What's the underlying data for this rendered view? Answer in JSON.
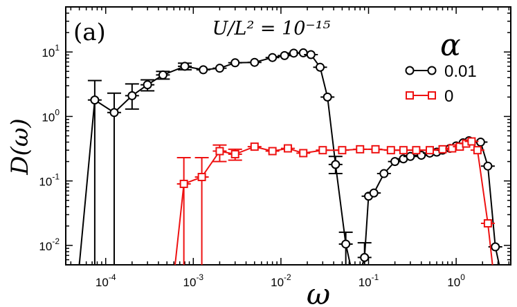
{
  "chart_data": {
    "type": "line",
    "panel_label": "(a)",
    "annotation": "U/L² = 10⁻¹⁵",
    "xlabel": "ω",
    "ylabel": "D(ω)",
    "xscale": "log",
    "yscale": "log",
    "xlim": [
      3.5e-05,
      4.2
    ],
    "ylim": [
      0.005,
      50
    ],
    "x_ticks": [
      {
        "value": 0.0001,
        "mantissa": "10",
        "exp": "-4"
      },
      {
        "value": 0.001,
        "mantissa": "10",
        "exp": "-3"
      },
      {
        "value": 0.01,
        "mantissa": "10",
        "exp": "-2"
      },
      {
        "value": 0.1,
        "mantissa": "10",
        "exp": "-1"
      },
      {
        "value": 1,
        "mantissa": "10",
        "exp": "0"
      }
    ],
    "y_ticks": [
      {
        "value": 0.01,
        "mantissa": "10",
        "exp": "-2"
      },
      {
        "value": 0.1,
        "mantissa": "10",
        "exp": "-1"
      },
      {
        "value": 1,
        "mantissa": "10",
        "exp": "0"
      },
      {
        "value": 10,
        "mantissa": "10",
        "exp": "1"
      }
    ],
    "legend": {
      "title": "α",
      "position": "top-right"
    },
    "series": [
      {
        "name": "0.01",
        "color": "#000000",
        "marker": "circle",
        "segments": [
          {
            "points": [
              {
                "x": 5e-05,
                "y": 0.005
              },
              {
                "x": 7.5e-05,
                "y": 1.8,
                "err": [
                  0.005,
                  3.6
                ]
              },
              {
                "x": 0.000125,
                "y": 1.15,
                "err": [
                  0.005,
                  2.3
                ]
              },
              {
                "x": 0.0002,
                "y": 2.1,
                "err": [
                  1.3,
                  3.2
                ]
              },
              {
                "x": 0.0003,
                "y": 3.1,
                "err": [
                  2.5,
                  3.7
                ]
              },
              {
                "x": 0.00045,
                "y": 4.4,
                "err": [
                  3.8,
                  5.0
                ]
              },
              {
                "x": 0.0008,
                "y": 6.0,
                "err": [
                  5.3,
                  6.7
                ]
              },
              {
                "x": 0.0013,
                "y": 5.3
              },
              {
                "x": 0.002,
                "y": 5.6
              },
              {
                "x": 0.003,
                "y": 6.8
              },
              {
                "x": 0.005,
                "y": 6.9
              },
              {
                "x": 0.008,
                "y": 8.2
              },
              {
                "x": 0.011,
                "y": 8.8
              },
              {
                "x": 0.014,
                "y": 9.6
              },
              {
                "x": 0.018,
                "y": 9.7
              },
              {
                "x": 0.022,
                "y": 9.1
              },
              {
                "x": 0.028,
                "y": 5.8
              },
              {
                "x": 0.034,
                "y": 2.0
              },
              {
                "x": 0.042,
                "y": 0.18,
                "err": [
                  0.13,
                  0.24
                ]
              },
              {
                "x": 0.055,
                "y": 0.0105,
                "err": [
                  0.005,
                  0.016
                ]
              },
              {
                "x": 0.062,
                "y": 0.005
              }
            ]
          },
          {
            "points": [
              {
                "x": 0.085,
                "y": 0.005
              },
              {
                "x": 0.09,
                "y": 0.0065,
                "err": [
                  0.005,
                  0.011
                ]
              },
              {
                "x": 0.1,
                "y": 0.058
              },
              {
                "x": 0.115,
                "y": 0.065
              },
              {
                "x": 0.15,
                "y": 0.13
              },
              {
                "x": 0.2,
                "y": 0.2
              },
              {
                "x": 0.25,
                "y": 0.22
              },
              {
                "x": 0.3,
                "y": 0.24
              },
              {
                "x": 0.4,
                "y": 0.25
              },
              {
                "x": 0.5,
                "y": 0.27
              },
              {
                "x": 0.6,
                "y": 0.28
              },
              {
                "x": 0.7,
                "y": 0.3
              },
              {
                "x": 0.85,
                "y": 0.32
              },
              {
                "x": 1.0,
                "y": 0.35
              },
              {
                "x": 1.2,
                "y": 0.39
              },
              {
                "x": 1.4,
                "y": 0.42
              },
              {
                "x": 1.9,
                "y": 0.4
              },
              {
                "x": 2.3,
                "y": 0.17
              },
              {
                "x": 2.8,
                "y": 0.0095
              },
              {
                "x": 3.1,
                "y": 0.005
              }
            ]
          }
        ]
      },
      {
        "name": "0",
        "color": "#ee1111",
        "marker": "square",
        "segments": [
          {
            "points": [
              {
                "x": 0.00062,
                "y": 0.005
              },
              {
                "x": 0.00078,
                "y": 0.09,
                "err": [
                  0.005,
                  0.23
                ]
              },
              {
                "x": 0.00125,
                "y": 0.115,
                "err": [
                  0.005,
                  0.23
                ]
              },
              {
                "x": 0.002,
                "y": 0.29,
                "err": [
                  0.2,
                  0.36
                ]
              },
              {
                "x": 0.003,
                "y": 0.26,
                "err": [
                  0.21,
                  0.31
                ]
              },
              {
                "x": 0.005,
                "y": 0.34
              },
              {
                "x": 0.008,
                "y": 0.29
              },
              {
                "x": 0.012,
                "y": 0.32
              },
              {
                "x": 0.018,
                "y": 0.27
              },
              {
                "x": 0.03,
                "y": 0.3
              },
              {
                "x": 0.05,
                "y": 0.3
              },
              {
                "x": 0.08,
                "y": 0.31
              },
              {
                "x": 0.12,
                "y": 0.31
              },
              {
                "x": 0.18,
                "y": 0.3
              },
              {
                "x": 0.25,
                "y": 0.3
              },
              {
                "x": 0.35,
                "y": 0.3
              },
              {
                "x": 0.5,
                "y": 0.3
              },
              {
                "x": 0.7,
                "y": 0.31
              },
              {
                "x": 0.9,
                "y": 0.32
              },
              {
                "x": 1.1,
                "y": 0.34
              },
              {
                "x": 1.3,
                "y": 0.38
              },
              {
                "x": 1.5,
                "y": 0.41
              },
              {
                "x": 1.75,
                "y": 0.3
              },
              {
                "x": 2.3,
                "y": 0.022
              },
              {
                "x": 2.6,
                "y": 0.005
              }
            ]
          }
        ]
      }
    ]
  }
}
